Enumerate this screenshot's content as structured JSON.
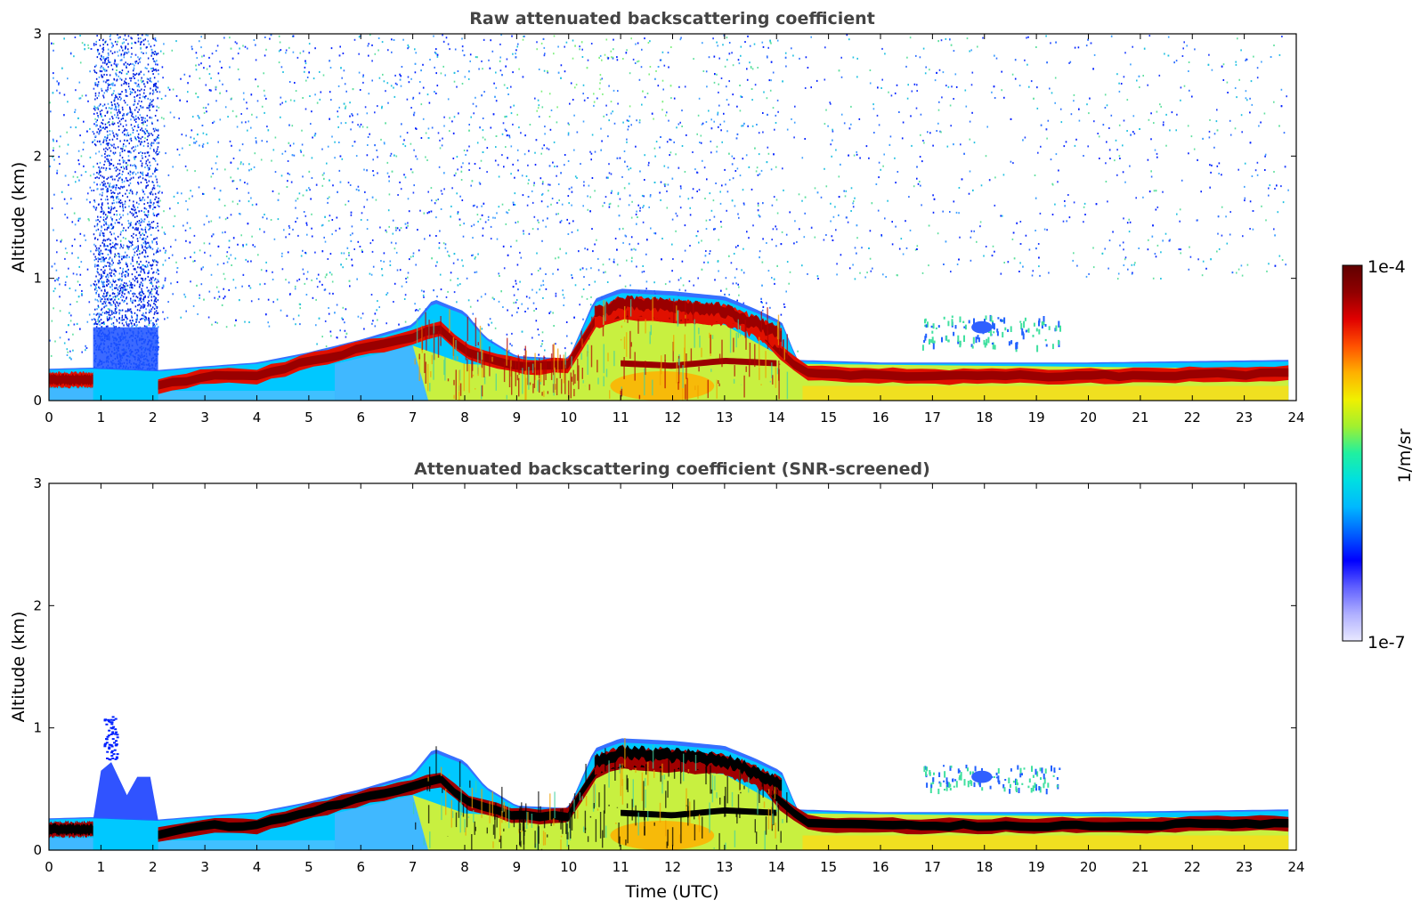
{
  "chart_data": [
    {
      "type": "heatmap",
      "title": "Raw attenuated backscattering coefficient",
      "xlabel": "",
      "ylabel": "Altitude (km)",
      "xlim": [
        0,
        24
      ],
      "ylim": [
        0,
        3
      ],
      "xticks": [
        "0",
        "1",
        "2",
        "3",
        "4",
        "5",
        "6",
        "7",
        "8",
        "9",
        "10",
        "11",
        "12",
        "13",
        "14",
        "15",
        "16",
        "17",
        "18",
        "19",
        "20",
        "21",
        "22",
        "23",
        "24"
      ],
      "yticks": [
        "0",
        "1",
        "2",
        "3"
      ],
      "data_end_time": 23.85,
      "layers": [
        {
          "name": "boundary layer top (hours, km)",
          "points": [
            [
              0,
              0.25
            ],
            [
              0.85,
              0.26
            ],
            [
              2.1,
              0.24
            ],
            [
              3,
              0.27
            ],
            [
              4,
              0.3
            ],
            [
              5,
              0.38
            ],
            [
              6,
              0.48
            ],
            [
              7,
              0.6
            ],
            [
              7.4,
              0.8
            ],
            [
              8,
              0.7
            ],
            [
              8.4,
              0.5
            ],
            [
              9,
              0.35
            ],
            [
              10,
              0.33
            ],
            [
              10.5,
              0.8
            ],
            [
              11,
              0.88
            ],
            [
              12,
              0.86
            ],
            [
              13,
              0.82
            ],
            [
              13.6,
              0.72
            ],
            [
              14.1,
              0.62
            ],
            [
              14.4,
              0.32
            ],
            [
              16,
              0.3
            ],
            [
              20,
              0.3
            ],
            [
              23.85,
              0.32
            ]
          ]
        },
        {
          "name": "strong layer height (hours, km)",
          "points": [
            [
              0,
              0.17
            ],
            [
              0.85,
              0.17
            ],
            [
              2.1,
              0.12
            ],
            [
              3,
              0.2
            ],
            [
              4,
              0.2
            ],
            [
              5,
              0.32
            ],
            [
              6,
              0.42
            ],
            [
              7,
              0.52
            ],
            [
              7.5,
              0.6
            ],
            [
              8,
              0.4
            ],
            [
              9,
              0.28
            ],
            [
              10,
              0.28
            ],
            [
              10.5,
              0.65
            ],
            [
              11,
              0.72
            ],
            [
              12,
              0.7
            ],
            [
              13,
              0.68
            ],
            [
              13.6,
              0.62
            ],
            [
              14.1,
              0.38
            ],
            [
              14.6,
              0.22
            ],
            [
              16,
              0.2
            ],
            [
              20,
              0.2
            ],
            [
              23.85,
              0.22
            ]
          ]
        },
        {
          "name": "residual layer height (hours, km)",
          "points": [
            [
              11,
              0.3
            ],
            [
              12,
              0.28
            ],
            [
              13,
              0.32
            ],
            [
              14,
              0.3
            ]
          ]
        }
      ],
      "events": [
        {
          "name": "precipitation",
          "start": 0.85,
          "end": 2.1,
          "top_km": 3.0
        },
        {
          "name": "elevated aerosol",
          "start": 16.8,
          "end": 19.5,
          "alt_km": [
            0.45,
            0.7
          ]
        }
      ]
    },
    {
      "type": "heatmap",
      "title": "Attenuated backscattering coefficient (SNR-screened)",
      "xlabel": "Time (UTC)",
      "ylabel": "Altitude (km)",
      "xlim": [
        0,
        24
      ],
      "ylim": [
        0,
        3
      ],
      "xticks": [
        "0",
        "1",
        "2",
        "3",
        "4",
        "5",
        "6",
        "7",
        "8",
        "9",
        "10",
        "11",
        "12",
        "13",
        "14",
        "15",
        "16",
        "17",
        "18",
        "19",
        "20",
        "21",
        "22",
        "23",
        "24"
      ],
      "yticks": [
        "0",
        "1",
        "2",
        "3"
      ],
      "data_end_time": 23.85,
      "events": [
        {
          "name": "precipitation",
          "start": 0.85,
          "end": 2.1,
          "top_km": 1.1
        },
        {
          "name": "elevated aerosol",
          "start": 16.8,
          "end": 19.5,
          "alt_km": [
            0.5,
            0.7
          ]
        }
      ]
    }
  ],
  "colorbar": {
    "label": "1/m/sr",
    "max_label": "1e-4",
    "min_label": "1e-7",
    "scale": "log",
    "colormap": [
      "#e8e8ff",
      "#b0b0ff",
      "#6060ff",
      "#0000ff",
      "#0060ff",
      "#00b8ff",
      "#00e0e0",
      "#20f0a0",
      "#a0f030",
      "#f0f000",
      "#ffb000",
      "#ff5000",
      "#e00000",
      "#900000",
      "#600000"
    ]
  }
}
